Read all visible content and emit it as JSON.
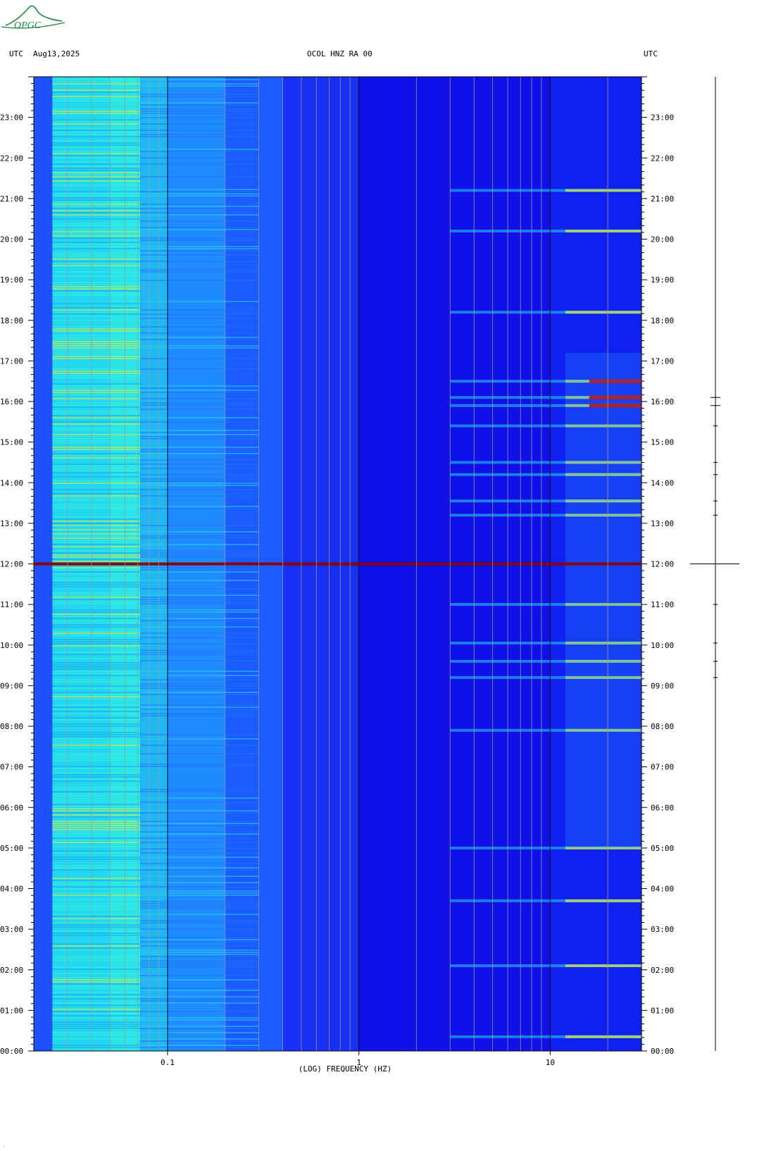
{
  "header": {
    "left_timezone": "UTC",
    "date": "Aug13,2025",
    "station": "OCOL HNZ RA 00",
    "right_timezone": "UTC"
  },
  "logo": {
    "text": "OPGC",
    "color": "#1a8a3a"
  },
  "colors": {
    "background_low": "#1010e8",
    "background_mid": "#1f50ff",
    "cyan": "#22d8f0",
    "yellow": "#d8f040",
    "red": "#c00000",
    "grid": "#9a9a9a"
  },
  "chart_data": {
    "type": "heatmap",
    "title": "OCOL HNZ RA 00",
    "xlabel": "(LOG) FREQUENCY (HZ)",
    "ylabel": "",
    "x_scale": "log",
    "x_range_hz": [
      0.02,
      30
    ],
    "x_ticks": [
      {
        "value": 0.1,
        "label": "0.1"
      },
      {
        "value": 1,
        "label": "1"
      },
      {
        "value": 10,
        "label": "10"
      }
    ],
    "y_range_hours": [
      0,
      24
    ],
    "y_tick_labels": [
      "00:00",
      "01:00",
      "02:00",
      "03:00",
      "04:00",
      "05:00",
      "06:00",
      "07:00",
      "08:00",
      "09:00",
      "10:00",
      "11:00",
      "12:00",
      "13:00",
      "14:00",
      "15:00",
      "16:00",
      "17:00",
      "18:00",
      "19:00",
      "20:00",
      "21:00",
      "22:00",
      "23:00"
    ],
    "grid_frequencies_hz": [
      0.03,
      0.04,
      0.05,
      0.06,
      0.07,
      0.08,
      0.09,
      0.2,
      0.3,
      0.4,
      0.5,
      0.6,
      0.7,
      0.8,
      0.9,
      2,
      3,
      4,
      5,
      6,
      7,
      8,
      9,
      20
    ],
    "major_grid_frequencies_hz": [
      0.1,
      1,
      10
    ],
    "marker_line_hour": 12.0,
    "event_hours": [
      0.35,
      2.1,
      3.7,
      5.0,
      7.9,
      9.2,
      9.6,
      10.05,
      11.0,
      13.2,
      13.55,
      14.2,
      14.5,
      15.4,
      15.9,
      16.1,
      16.5,
      18.2,
      20.2,
      21.2
    ],
    "legend": "none"
  }
}
